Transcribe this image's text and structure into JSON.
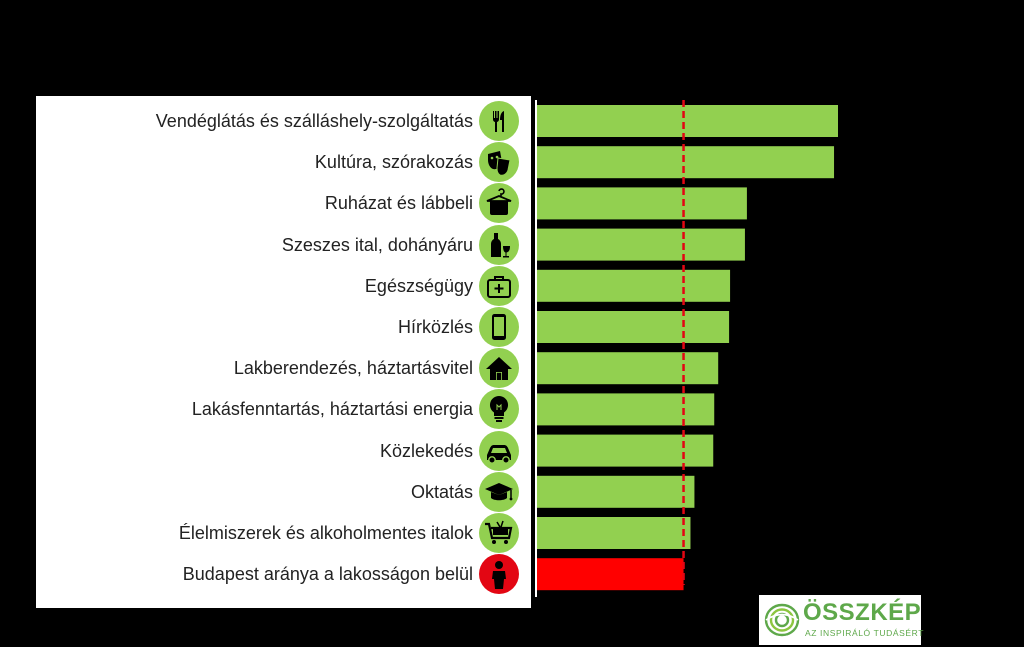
{
  "chart_data": {
    "type": "bar",
    "orientation": "horizontal",
    "categories": [
      "Vendéglátás és szálláshely-szolgáltatás",
      "Kultúra, szórakozás",
      "Ruházat és lábbeli",
      "Szeszes ital, dohányáru",
      "Egészségügy",
      "Hírközlés",
      "Lakberendezés, háztartásvitel",
      "Lakásfenntartás, háztartási energia",
      "Közlekedés",
      "Oktatás",
      "Élelmiszerek és alkoholmentes italok",
      "Budapest aránya a lakosságon belül"
    ],
    "values": [
      0.304,
      0.3,
      0.212,
      0.21,
      0.195,
      0.194,
      0.183,
      0.179,
      0.178,
      0.159,
      0.155,
      0.148
    ],
    "bar_colors": [
      "#92d050",
      "#92d050",
      "#92d050",
      "#92d050",
      "#92d050",
      "#92d050",
      "#92d050",
      "#92d050",
      "#92d050",
      "#92d050",
      "#92d050",
      "#ff0000"
    ],
    "icons": [
      "fork-knife-icon",
      "theater-masks-icon",
      "clothes-hanger-icon",
      "bottle-glass-icon",
      "medical-kit-icon",
      "smartphone-icon",
      "house-icon",
      "light-bulb-icon",
      "car-icon",
      "graduation-cap-icon",
      "shopping-cart-icon",
      "person-icon"
    ],
    "icon_colors": [
      "#92d050",
      "#92d050",
      "#92d050",
      "#92d050",
      "#92d050",
      "#92d050",
      "#92d050",
      "#92d050",
      "#92d050",
      "#92d050",
      "#92d050",
      "#e30613"
    ],
    "reference_line": {
      "value": 0.148,
      "color": "#e30613",
      "style": "dashed"
    },
    "xlim": [
      0,
      0.32
    ],
    "title": "",
    "xlabel": "",
    "ylabel": "",
    "grid": false,
    "legend": "none"
  },
  "logo": {
    "name": "ÖSSZKÉP",
    "tagline": "AZ INSPIRÁLÓ TUDÁSÉRT"
  }
}
